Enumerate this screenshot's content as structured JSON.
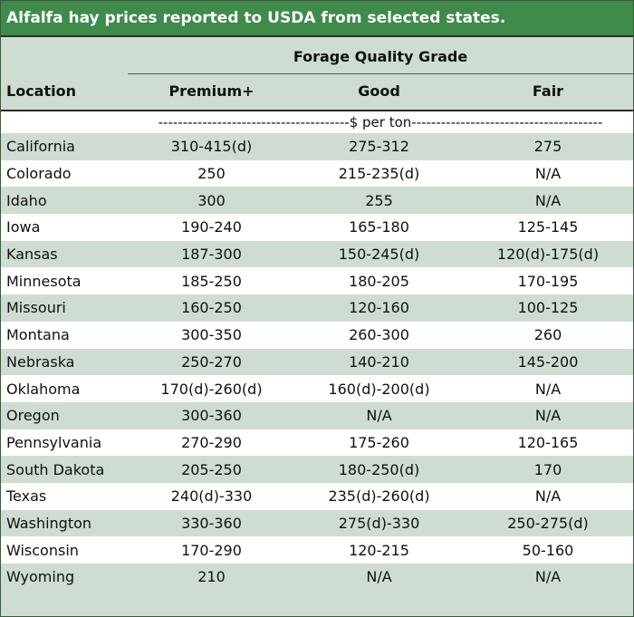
{
  "title": "Alfalfa hay prices reported to USDA from selected states.",
  "header": {
    "group": "Forage Quality Grade",
    "location": "Location",
    "premium": "Premium+",
    "good": "Good",
    "fair": "Fair"
  },
  "unit_row": "---------------------------------------$ per ton---------------------------------------",
  "rows": [
    {
      "location": "California",
      "premium": "310-415(d)",
      "good": "275-312",
      "fair": "275"
    },
    {
      "location": "Colorado",
      "premium": "250",
      "good": "215-235(d)",
      "fair": "N/A"
    },
    {
      "location": "Idaho",
      "premium": "300",
      "good": "255",
      "fair": "N/A"
    },
    {
      "location": "Iowa",
      "premium": "190-240",
      "good": "165-180",
      "fair": "125-145"
    },
    {
      "location": "Kansas",
      "premium": "187-300",
      "good": "150-245(d)",
      "fair": "120(d)-175(d)"
    },
    {
      "location": "Minnesota",
      "premium": "185-250",
      "good": "180-205",
      "fair": "170-195"
    },
    {
      "location": "Missouri",
      "premium": "160-250",
      "good": "120-160",
      "fair": "100-125"
    },
    {
      "location": "Montana",
      "premium": "300-350",
      "good": "260-300",
      "fair": "260"
    },
    {
      "location": "Nebraska",
      "premium": "250-270",
      "good": "140-210",
      "fair": "145-200"
    },
    {
      "location": "Oklahoma",
      "premium": "170(d)-260(d)",
      "good": "160(d)-200(d)",
      "fair": "N/A"
    },
    {
      "location": "Oregon",
      "premium": "300-360",
      "good": "N/A",
      "fair": "N/A"
    },
    {
      "location": "Pennsylvania",
      "premium": "270-290",
      "good": "175-260",
      "fair": "120-165"
    },
    {
      "location": "South Dakota",
      "premium": "205-250",
      "good": "180-250(d)",
      "fair": "170"
    },
    {
      "location": "Texas",
      "premium": "240(d)-330",
      "good": "235(d)-260(d)",
      "fair": "N/A"
    },
    {
      "location": "Washington",
      "premium": "330-360",
      "good": "275(d)-330",
      "fair": "250-275(d)"
    },
    {
      "location": "Wisconsin",
      "premium": "170-290",
      "good": "120-215",
      "fair": "50-160"
    },
    {
      "location": "Wyoming",
      "premium": "210",
      "good": "N/A",
      "fair": "N/A"
    }
  ]
}
